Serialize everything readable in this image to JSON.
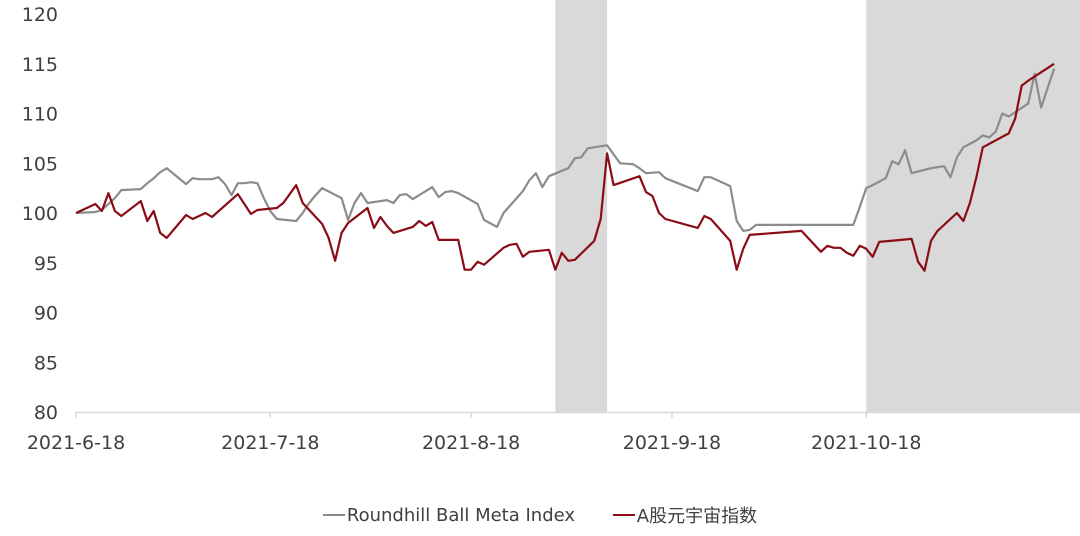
{
  "chart_data": {
    "type": "line",
    "title": "",
    "xlabel": "",
    "ylabel": "",
    "ylim": [
      80,
      120
    ],
    "y_ticks": [
      80,
      85,
      90,
      95,
      100,
      105,
      110,
      115,
      120
    ],
    "x_range": [
      "2021-06-18",
      "2021-11-20"
    ],
    "x_tick_labels": [
      {
        "date": "2021-06-18",
        "label": "2021-6-18"
      },
      {
        "date": "2021-07-18",
        "label": "2021-7-18"
      },
      {
        "date": "2021-08-18",
        "label": "2021-8-18"
      },
      {
        "date": "2021-09-18",
        "label": "2021-9-18"
      },
      {
        "date": "2021-10-18",
        "label": "2021-10-18"
      }
    ],
    "grid": false,
    "legend_position": "bottom-center",
    "shaded_periods": [
      {
        "start": "2021-08-31",
        "end": "2021-09-08"
      },
      {
        "start": "2021-10-18",
        "end": "2021-11-20"
      }
    ],
    "shade_color": "#d9d9d9",
    "axis_color": "#d9d9d9",
    "series": [
      {
        "name": "Roundhill Ball Meta Index",
        "color": "#8c8c8c",
        "points": [
          [
            "2021-06-18",
            100.0
          ],
          [
            "2021-06-21",
            100.1
          ],
          [
            "2021-06-22",
            100.3
          ],
          [
            "2021-06-24",
            101.5
          ],
          [
            "2021-06-25",
            102.3
          ],
          [
            "2021-06-28",
            102.4
          ],
          [
            "2021-06-29",
            103.0
          ],
          [
            "2021-06-30",
            103.5
          ],
          [
            "2021-07-01",
            104.1
          ],
          [
            "2021-07-02",
            104.5
          ],
          [
            "2021-07-05",
            102.9
          ],
          [
            "2021-07-06",
            103.5
          ],
          [
            "2021-07-07",
            103.4
          ],
          [
            "2021-07-08",
            103.4
          ],
          [
            "2021-07-09",
            103.4
          ],
          [
            "2021-07-10",
            103.6
          ],
          [
            "2021-07-11",
            102.9
          ],
          [
            "2021-07-12",
            101.8
          ],
          [
            "2021-07-13",
            103.0
          ],
          [
            "2021-07-14",
            103.0
          ],
          [
            "2021-07-15",
            103.1
          ],
          [
            "2021-07-16",
            103.0
          ],
          [
            "2021-07-17",
            101.5
          ],
          [
            "2021-07-18",
            100.2
          ],
          [
            "2021-07-19",
            99.4
          ],
          [
            "2021-07-22",
            99.2
          ],
          [
            "2021-07-23",
            100.0
          ],
          [
            "2021-07-24",
            101.0
          ],
          [
            "2021-07-25",
            101.8
          ],
          [
            "2021-07-26",
            102.5
          ],
          [
            "2021-07-29",
            101.5
          ],
          [
            "2021-07-30",
            99.3
          ],
          [
            "2021-07-31",
            101.0
          ],
          [
            "2021-08-01",
            102.0
          ],
          [
            "2021-08-02",
            101.0
          ],
          [
            "2021-08-05",
            101.3
          ],
          [
            "2021-08-06",
            101.0
          ],
          [
            "2021-08-07",
            101.8
          ],
          [
            "2021-08-08",
            101.9
          ],
          [
            "2021-08-09",
            101.4
          ],
          [
            "2021-08-12",
            102.6
          ],
          [
            "2021-08-13",
            101.6
          ],
          [
            "2021-08-14",
            102.1
          ],
          [
            "2021-08-15",
            102.2
          ],
          [
            "2021-08-16",
            102.0
          ],
          [
            "2021-08-19",
            100.9
          ],
          [
            "2021-08-20",
            99.3
          ],
          [
            "2021-08-22",
            98.6
          ],
          [
            "2021-08-23",
            100.0
          ],
          [
            "2021-08-26",
            102.2
          ],
          [
            "2021-08-27",
            103.3
          ],
          [
            "2021-08-28",
            104.0
          ],
          [
            "2021-08-29",
            102.6
          ],
          [
            "2021-08-30",
            103.7
          ],
          [
            "2021-09-02",
            104.5
          ],
          [
            "2021-09-03",
            105.5
          ],
          [
            "2021-09-04",
            105.6
          ],
          [
            "2021-09-05",
            106.5
          ],
          [
            "2021-09-06",
            106.6
          ],
          [
            "2021-09-08",
            106.8
          ],
          [
            "2021-09-09",
            105.9
          ],
          [
            "2021-09-10",
            105.0
          ],
          [
            "2021-09-12",
            104.9
          ],
          [
            "2021-09-13",
            104.5
          ],
          [
            "2021-09-14",
            104.0
          ],
          [
            "2021-09-16",
            104.1
          ],
          [
            "2021-09-17",
            103.5
          ],
          [
            "2021-09-22",
            102.2
          ],
          [
            "2021-09-23",
            103.6
          ],
          [
            "2021-09-24",
            103.6
          ],
          [
            "2021-09-27",
            102.7
          ],
          [
            "2021-09-28",
            99.2
          ],
          [
            "2021-09-29",
            98.2
          ],
          [
            "2021-09-30",
            98.3
          ],
          [
            "2021-10-01",
            98.8
          ],
          [
            "2021-10-16",
            98.8
          ],
          [
            "2021-10-17",
            100.6
          ],
          [
            "2021-10-18",
            102.5
          ],
          [
            "2021-10-19",
            102.8
          ],
          [
            "2021-10-21",
            103.5
          ],
          [
            "2021-10-22",
            105.2
          ],
          [
            "2021-10-23",
            104.9
          ],
          [
            "2021-10-24",
            106.3
          ],
          [
            "2021-10-25",
            104.0
          ],
          [
            "2021-10-28",
            104.5
          ],
          [
            "2021-10-30",
            104.7
          ],
          [
            "2021-10-31",
            103.6
          ],
          [
            "2021-11-01",
            105.6
          ],
          [
            "2021-11-02",
            106.6
          ],
          [
            "2021-11-04",
            107.3
          ],
          [
            "2021-11-05",
            107.8
          ],
          [
            "2021-11-06",
            107.6
          ],
          [
            "2021-11-07",
            108.2
          ],
          [
            "2021-11-08",
            110.0
          ],
          [
            "2021-11-09",
            109.7
          ],
          [
            "2021-11-12",
            111.0
          ],
          [
            "2021-11-13",
            114.0
          ],
          [
            "2021-11-14",
            110.6
          ],
          [
            "2021-11-16",
            114.5
          ]
        ]
      },
      {
        "name": "A股元宇宙指数",
        "color": "#8b0c16",
        "points": [
          [
            "2021-06-18",
            100.0
          ],
          [
            "2021-06-21",
            100.9
          ],
          [
            "2021-06-22",
            100.2
          ],
          [
            "2021-06-23",
            102.0
          ],
          [
            "2021-06-24",
            100.2
          ],
          [
            "2021-06-25",
            99.7
          ],
          [
            "2021-06-28",
            101.2
          ],
          [
            "2021-06-29",
            99.2
          ],
          [
            "2021-06-30",
            100.2
          ],
          [
            "2021-07-01",
            98.0
          ],
          [
            "2021-07-02",
            97.5
          ],
          [
            "2021-07-05",
            99.8
          ],
          [
            "2021-07-06",
            99.4
          ],
          [
            "2021-07-08",
            100.0
          ],
          [
            "2021-07-09",
            99.6
          ],
          [
            "2021-07-13",
            101.9
          ],
          [
            "2021-07-14",
            100.9
          ],
          [
            "2021-07-15",
            99.9
          ],
          [
            "2021-07-16",
            100.3
          ],
          [
            "2021-07-19",
            100.5
          ],
          [
            "2021-07-20",
            101.0
          ],
          [
            "2021-07-22",
            102.8
          ],
          [
            "2021-07-23",
            101.0
          ],
          [
            "2021-07-26",
            98.9
          ],
          [
            "2021-07-27",
            97.5
          ],
          [
            "2021-07-28",
            95.2
          ],
          [
            "2021-07-29",
            98.0
          ],
          [
            "2021-07-30",
            99.0
          ],
          [
            "2021-08-02",
            100.5
          ],
          [
            "2021-08-03",
            98.5
          ],
          [
            "2021-08-04",
            99.6
          ],
          [
            "2021-08-05",
            98.7
          ],
          [
            "2021-08-06",
            98.0
          ],
          [
            "2021-08-09",
            98.6
          ],
          [
            "2021-08-10",
            99.2
          ],
          [
            "2021-08-11",
            98.7
          ],
          [
            "2021-08-12",
            99.1
          ],
          [
            "2021-08-13",
            97.3
          ],
          [
            "2021-08-16",
            97.3
          ],
          [
            "2021-08-17",
            94.3
          ],
          [
            "2021-08-18",
            94.3
          ],
          [
            "2021-08-19",
            95.1
          ],
          [
            "2021-08-20",
            94.8
          ],
          [
            "2021-08-23",
            96.5
          ],
          [
            "2021-08-24",
            96.8
          ],
          [
            "2021-08-25",
            96.9
          ],
          [
            "2021-08-26",
            95.6
          ],
          [
            "2021-08-27",
            96.1
          ],
          [
            "2021-08-30",
            96.3
          ],
          [
            "2021-08-31",
            94.3
          ],
          [
            "2021-09-01",
            96.0
          ],
          [
            "2021-09-02",
            95.2
          ],
          [
            "2021-09-03",
            95.3
          ],
          [
            "2021-09-06",
            97.2
          ],
          [
            "2021-09-07",
            99.4
          ],
          [
            "2021-09-08",
            106.0
          ],
          [
            "2021-09-09",
            102.8
          ],
          [
            "2021-09-13",
            103.7
          ],
          [
            "2021-09-14",
            102.1
          ],
          [
            "2021-09-15",
            101.7
          ],
          [
            "2021-09-16",
            100.0
          ],
          [
            "2021-09-17",
            99.4
          ],
          [
            "2021-09-22",
            98.5
          ],
          [
            "2021-09-23",
            99.7
          ],
          [
            "2021-09-24",
            99.4
          ],
          [
            "2021-09-27",
            97.2
          ],
          [
            "2021-09-28",
            94.3
          ],
          [
            "2021-09-29",
            96.4
          ],
          [
            "2021-09-30",
            97.8
          ],
          [
            "2021-10-08",
            98.2
          ],
          [
            "2021-10-11",
            96.1
          ],
          [
            "2021-10-12",
            96.7
          ],
          [
            "2021-10-13",
            96.5
          ],
          [
            "2021-10-14",
            96.5
          ],
          [
            "2021-10-15",
            96.0
          ],
          [
            "2021-10-16",
            95.7
          ],
          [
            "2021-10-17",
            96.7
          ],
          [
            "2021-10-18",
            96.4
          ],
          [
            "2021-10-19",
            95.6
          ],
          [
            "2021-10-20",
            97.1
          ],
          [
            "2021-10-25",
            97.4
          ],
          [
            "2021-10-26",
            95.1
          ],
          [
            "2021-10-27",
            94.2
          ],
          [
            "2021-10-28",
            97.2
          ],
          [
            "2021-10-29",
            98.2
          ],
          [
            "2021-11-01",
            100.0
          ],
          [
            "2021-11-02",
            99.2
          ],
          [
            "2021-11-03",
            101.0
          ],
          [
            "2021-11-04",
            103.6
          ],
          [
            "2021-11-05",
            106.6
          ],
          [
            "2021-11-09",
            108.0
          ],
          [
            "2021-11-10",
            109.5
          ],
          [
            "2021-11-11",
            112.8
          ],
          [
            "2021-11-12",
            113.3
          ],
          [
            "2021-11-16",
            115.0
          ]
        ]
      }
    ]
  }
}
